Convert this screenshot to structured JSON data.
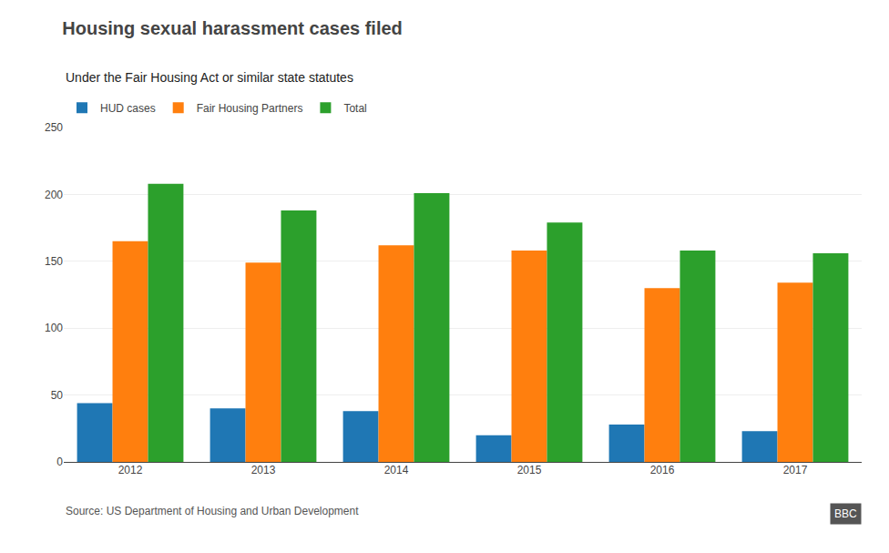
{
  "chart_data": {
    "type": "bar",
    "title": "Housing sexual harassment cases filed",
    "subtitle": "Under the Fair Housing Act or similar state statutes",
    "annotations": [
      "Source: US Department of Housing and Urban Development",
      "BBC"
    ],
    "categories": [
      "2012",
      "2013",
      "2014",
      "2015",
      "2016",
      "2017"
    ],
    "series": [
      {
        "name": "HUD cases",
        "values": [
          44,
          40,
          38,
          20,
          28,
          23
        ]
      },
      {
        "name": "Fair Housing Partners",
        "values": [
          165,
          149,
          162,
          158,
          130,
          134
        ]
      },
      {
        "name": "Total",
        "values": [
          208,
          188,
          201,
          179,
          158,
          156
        ]
      }
    ],
    "ylim": [
      0,
      250
    ],
    "yticks": [
      0,
      50,
      100,
      150,
      200,
      250
    ],
    "grid": true,
    "legend": "upper left"
  }
}
